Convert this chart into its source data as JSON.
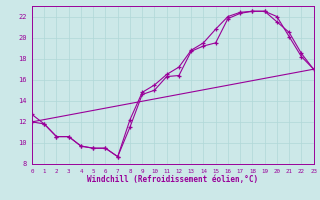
{
  "xlabel": "Windchill (Refroidissement éolien,°C)",
  "xlim": [
    0,
    23
  ],
  "ylim": [
    8,
    23
  ],
  "xticks": [
    0,
    1,
    2,
    3,
    4,
    5,
    6,
    7,
    8,
    9,
    10,
    11,
    12,
    13,
    14,
    15,
    16,
    17,
    18,
    19,
    20,
    21,
    22,
    23
  ],
  "yticks": [
    8,
    10,
    12,
    14,
    16,
    18,
    20,
    22
  ],
  "background_color": "#cce8e8",
  "grid_color": "#b0d8d8",
  "line_color": "#990099",
  "series": [
    {
      "x": [
        0,
        1,
        2,
        3,
        4,
        5,
        6,
        7,
        8,
        9,
        10,
        11,
        12,
        13,
        14,
        15,
        16,
        17,
        18,
        19,
        20,
        21,
        22,
        23
      ],
      "y": [
        12.7,
        11.8,
        10.6,
        10.6,
        9.7,
        9.5,
        9.5,
        8.7,
        11.5,
        14.6,
        15.0,
        16.3,
        16.4,
        18.7,
        19.2,
        19.5,
        21.8,
        22.3,
        22.5,
        22.5,
        22.0,
        20.1,
        18.2,
        17.0
      ],
      "marker": true
    },
    {
      "x": [
        0,
        1,
        2,
        3,
        4,
        5,
        6,
        7,
        8,
        9,
        10,
        11,
        12,
        13,
        14,
        15,
        16,
        17,
        18,
        19,
        20,
        21,
        22,
        23
      ],
      "y": [
        12.0,
        11.8,
        10.6,
        10.6,
        9.7,
        9.5,
        9.5,
        8.7,
        12.2,
        14.8,
        15.5,
        16.5,
        17.2,
        18.8,
        19.5,
        20.8,
        22.0,
        22.4,
        22.5,
        22.5,
        21.5,
        20.5,
        18.5,
        17.0
      ],
      "marker": true
    },
    {
      "x": [
        0,
        23
      ],
      "y": [
        12.0,
        17.0
      ],
      "marker": false
    }
  ]
}
